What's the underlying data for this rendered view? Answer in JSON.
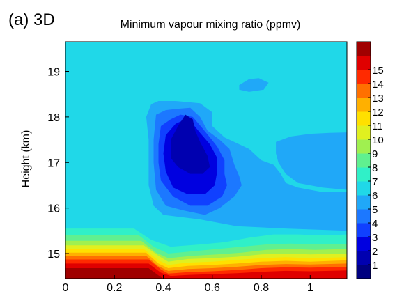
{
  "chart_data": {
    "type": "heatmap",
    "panel_label": "(a) 3D",
    "title": "Minimum vapour mixing ratio (ppmv)",
    "xlabel": "",
    "ylabel": "Height (km)",
    "xlim": [
      0,
      1.15
    ],
    "ylim": [
      14.45,
      19.65
    ],
    "x_ticks": [
      "0",
      "0.2",
      "0.4",
      "0.6",
      "0.8",
      "1"
    ],
    "y_ticks": [
      "15",
      "16",
      "17",
      "18",
      "19"
    ],
    "colorbar": {
      "labels": [
        "1",
        "2",
        "3",
        "4",
        "5",
        "6",
        "7",
        "8",
        "9",
        "10",
        "11",
        "12",
        "13",
        "14",
        "15"
      ],
      "colors": [
        "#000080",
        "#0000b0",
        "#0000e0",
        "#1040ff",
        "#1c78ff",
        "#20a8f8",
        "#20d8e8",
        "#30f0c8",
        "#60f090",
        "#a0f050",
        "#e0f020",
        "#ffe000",
        "#ffb000",
        "#ff7000",
        "#ff2a00",
        "#e00000",
        "#a00000"
      ]
    },
    "background_level": 6,
    "regions": [
      {
        "level": 5,
        "poly": [
          [
            0.35,
            18.28
          ],
          [
            0.38,
            18.35
          ],
          [
            0.45,
            18.35
          ],
          [
            0.55,
            18.3
          ],
          [
            0.6,
            18.1
          ],
          [
            0.6,
            17.8
          ],
          [
            0.65,
            17.55
          ],
          [
            0.75,
            17.3
          ],
          [
            0.8,
            17.05
          ],
          [
            0.85,
            16.95
          ],
          [
            0.88,
            16.75
          ],
          [
            0.9,
            16.55
          ],
          [
            0.95,
            16.45
          ],
          [
            1.05,
            16.35
          ],
          [
            1.15,
            16.35
          ],
          [
            1.15,
            15.5
          ],
          [
            0.9,
            15.55
          ],
          [
            0.7,
            15.6
          ],
          [
            0.55,
            15.75
          ],
          [
            0.4,
            15.85
          ],
          [
            0.36,
            16.05
          ],
          [
            0.34,
            16.5
          ],
          [
            0.34,
            17.0
          ],
          [
            0.34,
            17.5
          ],
          [
            0.33,
            18.0
          ]
        ]
      },
      {
        "level": 5,
        "poly": [
          [
            0.86,
            17.45
          ],
          [
            0.92,
            17.57
          ],
          [
            1.0,
            17.63
          ],
          [
            1.08,
            17.65
          ],
          [
            1.15,
            17.66
          ],
          [
            1.15,
            16.4
          ],
          [
            1.05,
            16.45
          ],
          [
            0.95,
            16.55
          ],
          [
            0.9,
            16.75
          ],
          [
            0.87,
            17.0
          ],
          [
            0.86,
            17.2
          ]
        ]
      },
      {
        "level": 5,
        "poly": [
          [
            0.71,
            18.7
          ],
          [
            0.75,
            18.83
          ],
          [
            0.79,
            18.85
          ],
          [
            0.83,
            18.75
          ],
          [
            0.81,
            18.6
          ],
          [
            0.75,
            18.55
          ],
          [
            0.71,
            18.6
          ]
        ]
      },
      {
        "level": 4,
        "poly": [
          [
            0.37,
            18.05
          ],
          [
            0.41,
            18.15
          ],
          [
            0.46,
            18.18
          ],
          [
            0.51,
            18.2
          ],
          [
            0.55,
            18.0
          ],
          [
            0.58,
            17.7
          ],
          [
            0.63,
            17.5
          ],
          [
            0.67,
            17.3
          ],
          [
            0.69,
            16.95
          ],
          [
            0.71,
            16.7
          ],
          [
            0.72,
            16.5
          ],
          [
            0.69,
            16.25
          ],
          [
            0.63,
            16.0
          ],
          [
            0.57,
            15.85
          ],
          [
            0.48,
            15.95
          ],
          [
            0.41,
            16.05
          ],
          [
            0.37,
            16.4
          ],
          [
            0.36,
            17.0
          ],
          [
            0.36,
            17.5
          ]
        ]
      },
      {
        "level": 3,
        "poly": [
          [
            0.39,
            17.8
          ],
          [
            0.43,
            17.95
          ],
          [
            0.47,
            18.05
          ],
          [
            0.52,
            18.0
          ],
          [
            0.56,
            17.75
          ],
          [
            0.59,
            17.55
          ],
          [
            0.62,
            17.35
          ],
          [
            0.65,
            17.05
          ],
          [
            0.65,
            16.75
          ],
          [
            0.66,
            16.5
          ],
          [
            0.64,
            16.25
          ],
          [
            0.58,
            16.05
          ],
          [
            0.51,
            16.05
          ],
          [
            0.44,
            16.25
          ],
          [
            0.39,
            16.6
          ],
          [
            0.38,
            17.0
          ],
          [
            0.38,
            17.4
          ]
        ]
      },
      {
        "level": 2,
        "poly": [
          [
            0.41,
            17.6
          ],
          [
            0.45,
            17.85
          ],
          [
            0.49,
            17.95
          ],
          [
            0.52,
            17.85
          ],
          [
            0.55,
            17.65
          ],
          [
            0.59,
            17.4
          ],
          [
            0.62,
            17.1
          ],
          [
            0.62,
            16.8
          ],
          [
            0.61,
            16.5
          ],
          [
            0.57,
            16.3
          ],
          [
            0.5,
            16.3
          ],
          [
            0.44,
            16.45
          ],
          [
            0.41,
            16.8
          ],
          [
            0.4,
            17.2
          ]
        ]
      },
      {
        "level": 1,
        "poly": [
          [
            0.43,
            17.5
          ],
          [
            0.46,
            17.8
          ],
          [
            0.49,
            18.05
          ],
          [
            0.52,
            17.95
          ],
          [
            0.53,
            17.7
          ],
          [
            0.55,
            17.45
          ],
          [
            0.58,
            17.15
          ],
          [
            0.59,
            16.9
          ],
          [
            0.56,
            16.75
          ],
          [
            0.51,
            16.75
          ],
          [
            0.46,
            16.9
          ],
          [
            0.43,
            17.1
          ]
        ]
      },
      {
        "level": 7,
        "poly": [
          [
            0,
            15.55
          ],
          [
            0.28,
            15.55
          ],
          [
            0.35,
            15.3
          ],
          [
            0.43,
            15.15
          ],
          [
            0.55,
            15.2
          ],
          [
            0.65,
            15.25
          ],
          [
            0.75,
            15.35
          ],
          [
            0.85,
            15.42
          ],
          [
            0.95,
            15.42
          ],
          [
            1.05,
            15.4
          ],
          [
            1.15,
            15.42
          ],
          [
            1.15,
            14.45
          ],
          [
            0,
            14.45
          ]
        ]
      },
      {
        "level": 8,
        "poly": [
          [
            0,
            15.4
          ],
          [
            0.3,
            15.4
          ],
          [
            0.36,
            15.15
          ],
          [
            0.42,
            15.0
          ],
          [
            0.52,
            15.05
          ],
          [
            0.62,
            15.1
          ],
          [
            0.72,
            15.15
          ],
          [
            0.82,
            15.2
          ],
          [
            0.92,
            15.22
          ],
          [
            1.02,
            15.2
          ],
          [
            1.15,
            15.2
          ],
          [
            1.15,
            14.45
          ],
          [
            0,
            14.45
          ]
        ]
      },
      {
        "level": 9,
        "poly": [
          [
            0,
            15.28
          ],
          [
            0.31,
            15.28
          ],
          [
            0.37,
            15.02
          ],
          [
            0.42,
            14.9
          ],
          [
            0.52,
            14.95
          ],
          [
            0.62,
            14.98
          ],
          [
            0.72,
            15.02
          ],
          [
            0.82,
            15.08
          ],
          [
            0.92,
            15.1
          ],
          [
            1.02,
            15.08
          ],
          [
            1.15,
            15.1
          ],
          [
            1.15,
            14.45
          ],
          [
            0,
            14.45
          ]
        ]
      },
      {
        "level": 10,
        "poly": [
          [
            0,
            15.18
          ],
          [
            0.32,
            15.18
          ],
          [
            0.38,
            14.95
          ],
          [
            0.42,
            14.82
          ],
          [
            0.5,
            14.88
          ],
          [
            0.6,
            14.9
          ],
          [
            0.7,
            14.93
          ],
          [
            0.8,
            14.98
          ],
          [
            0.9,
            15.0
          ],
          [
            1.0,
            14.98
          ],
          [
            1.15,
            15.0
          ],
          [
            1.15,
            14.45
          ],
          [
            0,
            14.45
          ]
        ]
      },
      {
        "level": 11,
        "poly": [
          [
            0,
            15.1
          ],
          [
            0.32,
            15.1
          ],
          [
            0.38,
            14.85
          ],
          [
            0.42,
            14.75
          ],
          [
            0.5,
            14.8
          ],
          [
            0.6,
            14.82
          ],
          [
            0.7,
            14.86
          ],
          [
            0.8,
            14.9
          ],
          [
            0.9,
            14.92
          ],
          [
            1.0,
            14.9
          ],
          [
            1.15,
            14.92
          ],
          [
            1.15,
            14.45
          ],
          [
            0,
            14.45
          ]
        ]
      },
      {
        "level": 12,
        "poly": [
          [
            0,
            15.02
          ],
          [
            0.33,
            15.02
          ],
          [
            0.38,
            14.78
          ],
          [
            0.42,
            14.68
          ],
          [
            0.5,
            14.73
          ],
          [
            0.6,
            14.75
          ],
          [
            0.7,
            14.78
          ],
          [
            0.8,
            14.82
          ],
          [
            0.9,
            14.84
          ],
          [
            1.0,
            14.82
          ],
          [
            1.15,
            14.85
          ],
          [
            1.15,
            14.45
          ],
          [
            0,
            14.45
          ]
        ]
      },
      {
        "level": 13,
        "poly": [
          [
            0,
            14.95
          ],
          [
            0.33,
            14.95
          ],
          [
            0.38,
            14.72
          ],
          [
            0.42,
            14.62
          ],
          [
            0.5,
            14.66
          ],
          [
            0.6,
            14.68
          ],
          [
            0.7,
            14.71
          ],
          [
            0.8,
            14.75
          ],
          [
            0.9,
            14.77
          ],
          [
            1.0,
            14.76
          ],
          [
            1.15,
            14.78
          ],
          [
            1.15,
            14.45
          ],
          [
            0,
            14.45
          ]
        ]
      },
      {
        "level": 14,
        "poly": [
          [
            0,
            14.87
          ],
          [
            0.34,
            14.87
          ],
          [
            0.39,
            14.65
          ],
          [
            0.42,
            14.56
          ],
          [
            0.5,
            14.59
          ],
          [
            0.6,
            14.61
          ],
          [
            0.7,
            14.64
          ],
          [
            0.8,
            14.68
          ],
          [
            0.9,
            14.7
          ],
          [
            1.0,
            14.69
          ],
          [
            1.15,
            14.71
          ],
          [
            1.15,
            14.45
          ],
          [
            0,
            14.45
          ]
        ]
      },
      {
        "level": 15,
        "poly": [
          [
            0,
            14.78
          ],
          [
            0.34,
            14.78
          ],
          [
            0.39,
            14.58
          ],
          [
            0.43,
            14.51
          ],
          [
            0.5,
            14.53
          ],
          [
            0.6,
            14.55
          ],
          [
            0.7,
            14.57
          ],
          [
            0.8,
            14.6
          ],
          [
            0.9,
            14.62
          ],
          [
            1.0,
            14.61
          ],
          [
            1.15,
            14.63
          ],
          [
            1.15,
            14.45
          ],
          [
            0,
            14.45
          ]
        ]
      },
      {
        "level": 16,
        "poly": [
          [
            0,
            14.68
          ],
          [
            0.34,
            14.68
          ],
          [
            0.38,
            14.52
          ],
          [
            0.4,
            14.45
          ],
          [
            0,
            14.45
          ]
        ]
      }
    ]
  }
}
